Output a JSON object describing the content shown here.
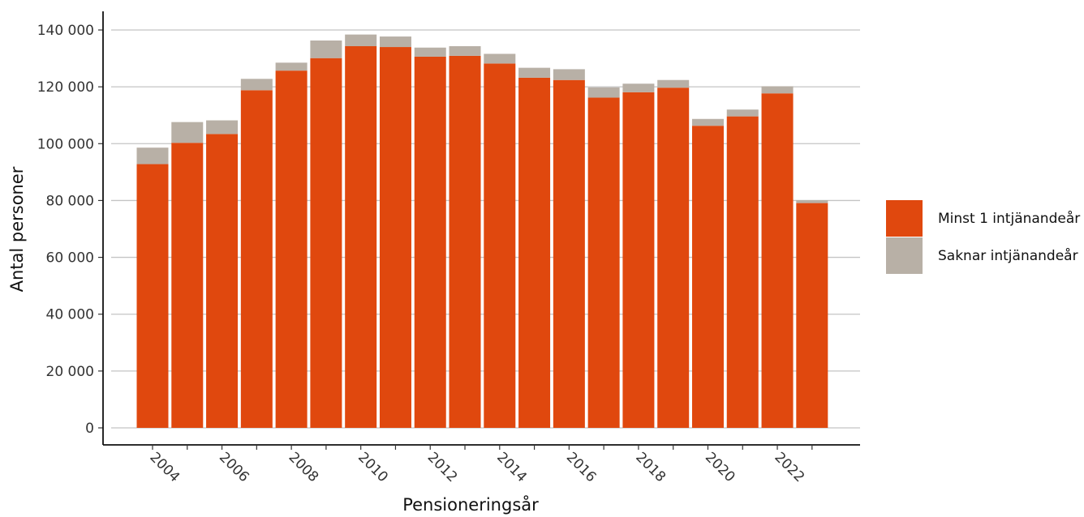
{
  "chart_data": {
    "type": "bar",
    "stacked": true,
    "title": "",
    "xlabel": "Pensioneringsår",
    "ylabel": "Antal personer",
    "ylim": [
      0,
      140000
    ],
    "grid": true,
    "legend_position": "right",
    "x": [
      2004,
      2005,
      2006,
      2007,
      2008,
      2009,
      2010,
      2011,
      2012,
      2013,
      2014,
      2015,
      2016,
      2017,
      2018,
      2019,
      2020,
      2021,
      2022,
      2023
    ],
    "x_tick_values": [
      2004,
      2006,
      2008,
      2010,
      2012,
      2014,
      2016,
      2018,
      2020,
      2022
    ],
    "x_tick_labels": [
      "2004",
      "2006",
      "2008",
      "2010",
      "2012",
      "2014",
      "2016",
      "2018",
      "2020",
      "2022"
    ],
    "y_tick_values": [
      0,
      20000,
      40000,
      60000,
      80000,
      100000,
      120000,
      140000
    ],
    "y_tick_labels": [
      "0",
      "20 000",
      "40 000",
      "60 000",
      "80 000",
      "100 000",
      "120 000",
      "140 000"
    ],
    "series": [
      {
        "name": "Minst 1 intjänandeår",
        "color": "#E0480E",
        "values": [
          92800,
          100300,
          103400,
          118800,
          125700,
          130100,
          134300,
          134000,
          130600,
          130900,
          128200,
          123200,
          122400,
          116200,
          118100,
          119700,
          106300,
          109600,
          117700,
          79100
        ]
      },
      {
        "name": "Saknar intjänandeår",
        "color": "#B8B0A6",
        "values": [
          5800,
          7300,
          4800,
          4000,
          2800,
          6200,
          4100,
          3700,
          3200,
          3400,
          3400,
          3500,
          3800,
          3600,
          3000,
          2700,
          2400,
          2400,
          2500,
          1000
        ]
      }
    ]
  }
}
